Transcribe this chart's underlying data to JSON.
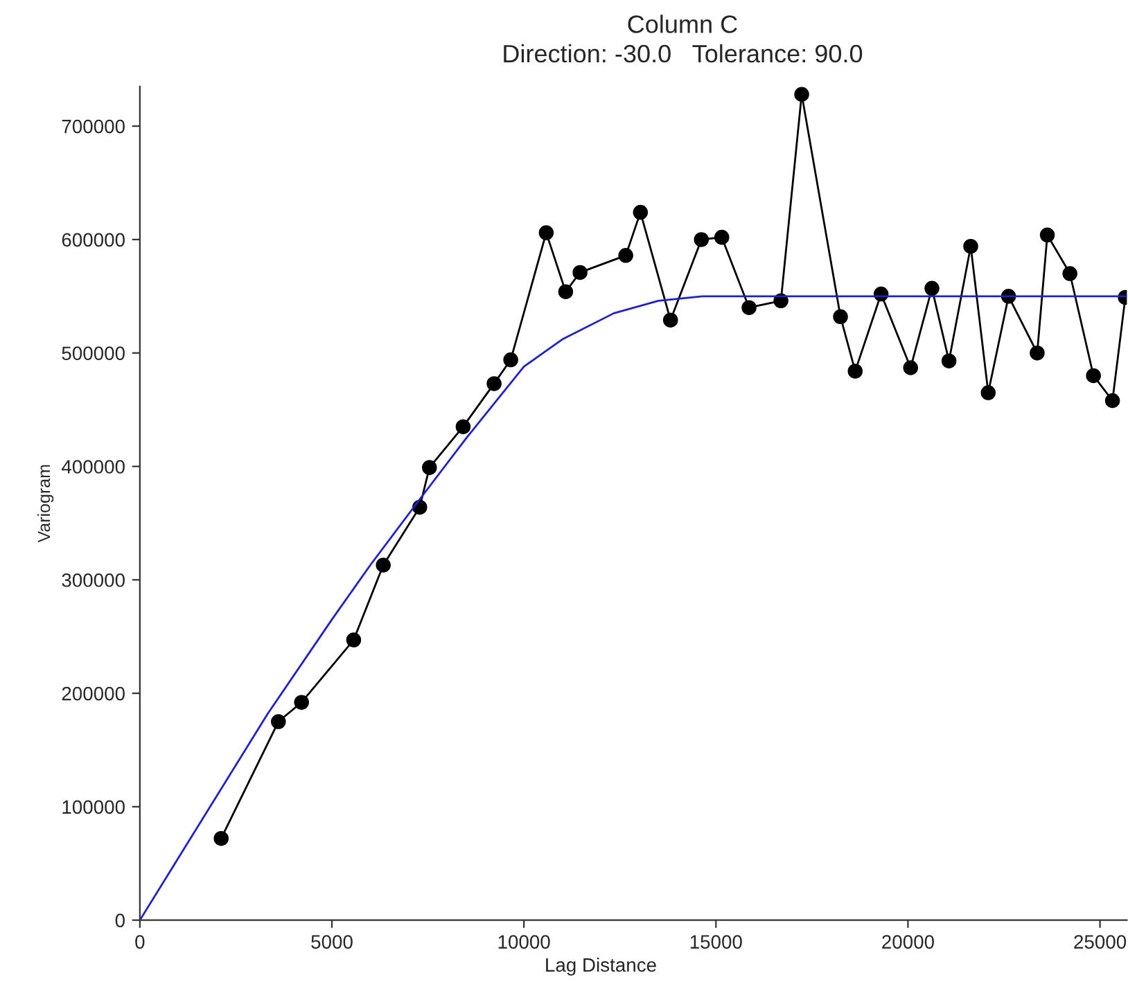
{
  "chart_data": {
    "type": "line",
    "title": "Column C",
    "subtitle": "Direction: -30.0   Tolerance: 90.0",
    "xlabel": "Lag Distance",
    "ylabel": "Variogram",
    "xlim": [
      0,
      25700
    ],
    "xticks": [
      0,
      5000,
      10000,
      15000,
      20000,
      25000
    ],
    "ylim": [
      0,
      735000
    ],
    "yticks": [
      0,
      100000,
      200000,
      300000,
      400000,
      500000,
      600000,
      700000
    ],
    "grid": false,
    "legend": false,
    "series": [
      {
        "color": "#000000",
        "marker": "circle",
        "line_style": "solid",
        "x": [
          2117,
          3607,
          4210,
          5567,
          6338,
          7287,
          7540,
          8417,
          9224,
          9657,
          10581,
          11087,
          11461,
          12652,
          13034,
          13817,
          14621,
          15152,
          15862,
          16692,
          17233,
          18243,
          18626,
          19300,
          20069,
          20624,
          21068,
          21634,
          22090,
          22619,
          23365,
          23629,
          24217,
          24830,
          25325,
          25660
        ],
        "values": [
          72000,
          175000,
          192000,
          247000,
          313000,
          364000,
          399000,
          435000,
          473000,
          494000,
          606000,
          554000,
          571000,
          586000,
          624000,
          529000,
          600000,
          602000,
          540000,
          546000,
          728000,
          532000,
          484000,
          552000,
          487000,
          557000,
          493000,
          594000,
          465000,
          550000,
          500000,
          604000,
          570000,
          480000,
          458000,
          549000
        ]
      },
      {
        "color": "#2020d0",
        "marker": "none",
        "line_style": "solid",
        "x": [
          0,
          3330,
          5000,
          6000,
          7287,
          8500,
          10000,
          11000,
          12340,
          13500,
          14640,
          25700
        ],
        "values": [
          0,
          182000,
          265000,
          313000,
          371000,
          425000,
          488000,
          512000,
          535000,
          546000,
          550000,
          550000
        ]
      }
    ]
  }
}
